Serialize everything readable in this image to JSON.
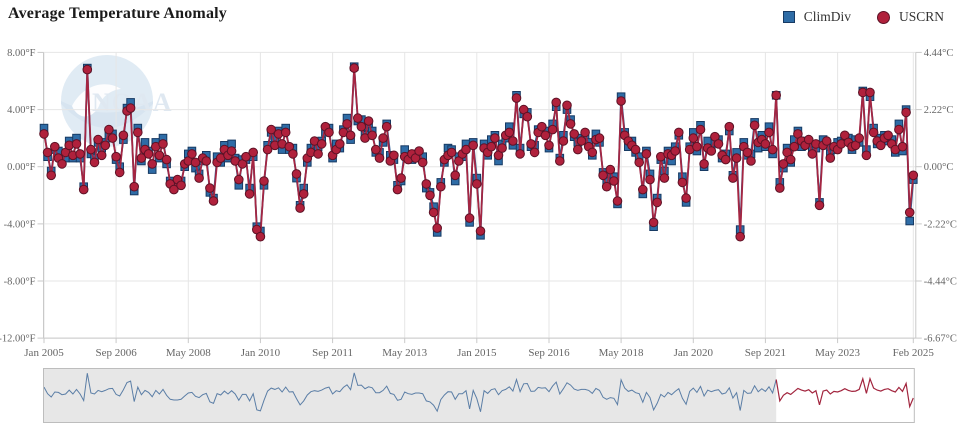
{
  "title": "Average Temperature Anomaly",
  "watermark": "NOAA",
  "legend": [
    {
      "label": "ClimDiv",
      "marker": "square",
      "color": "#2e6ca6",
      "border": "#173a63"
    },
    {
      "label": "USCRN",
      "marker": "circle",
      "color": "#b0213c",
      "border": "#5c1226"
    }
  ],
  "chart_data": {
    "type": "line",
    "title": "Average Temperature Anomaly",
    "x_start": "Jan 2005",
    "x_end": "Feb 2025",
    "x_interval": "monthly",
    "x_tick_labels": [
      "Jan 2005",
      "Sep 2006",
      "May 2008",
      "Jan 2010",
      "Sep 2011",
      "May 2013",
      "Jan 2015",
      "Sep 2016",
      "May 2018",
      "Jan 2020",
      "Sep 2021",
      "May 2023",
      "Feb 2025"
    ],
    "x_tick_month_index": [
      0,
      20,
      40,
      60,
      80,
      100,
      120,
      140,
      160,
      180,
      200,
      220,
      241
    ],
    "yaxis_left": {
      "unit": "°F",
      "ticks": [
        "8.00°F",
        "4.00°F",
        "0.00°F",
        "-4.00°F",
        "-8.00°F",
        "-12.00°F"
      ],
      "values": [
        8,
        4,
        0,
        -4,
        -8,
        -12
      ],
      "ylim": [
        -12,
        8
      ]
    },
    "yaxis_right": {
      "unit": "°C",
      "ticks": [
        "4.44°C",
        "2.22°C",
        "0.00°C",
        "-2.22°C",
        "-4.44°C",
        "-6.67°C"
      ],
      "values": [
        4.44,
        2.22,
        0,
        -2.22,
        -4.44,
        -6.67
      ],
      "ylim": [
        -6.67,
        4.44
      ]
    },
    "grid": true,
    "legend_position": "top-right",
    "line_color": {
      "climdiv": "#2a5f97",
      "uscrn": "#a52642"
    },
    "series": [
      {
        "name": "ClimDiv",
        "marker": "square",
        "color": "#2e6ca6",
        "values": [
          2.7,
          0.7,
          -0.3,
          1.2,
          1.1,
          0.4,
          0.6,
          1.8,
          0.6,
          2.0,
          0.6,
          -1.4,
          6.9,
          0.9,
          0.6,
          1.7,
          1.3,
          1.7,
          2.2,
          2.3,
          0.5,
          0.0,
          1.9,
          4.1,
          4.5,
          -1.7,
          2.7,
          0.4,
          1.7,
          1.1,
          -0.2,
          1.7,
          0.6,
          2.0,
          0.2,
          -1.0,
          -1.2,
          -1.2,
          -1.0,
          0.0,
          0.9,
          1.1,
          -0.1,
          -0.5,
          0.4,
          0.8,
          -1.8,
          -2.2,
          0.7,
          0.3,
          1.5,
          0.6,
          1.6,
          0.6,
          -1.3,
          0.5,
          0.5,
          -1.5,
          0.7,
          -4.2,
          -4.5,
          -1.3,
          1.5,
          2.4,
          2.0,
          2.5,
          1.2,
          2.7,
          1.2,
          1.3,
          -0.8,
          -2.7,
          -1.5,
          0.3,
          1.3,
          1.6,
          1.4,
          1.8,
          2.4,
          2.7,
          0.6,
          1.6,
          1.3,
          2.6,
          3.4,
          1.9,
          7.0,
          3.2,
          3.3,
          2.2,
          2.8,
          2.5,
          1.0,
          1.0,
          1.7,
          3.0,
          0.8,
          0.5,
          -1.3,
          -1.0,
          1.2,
          0.7,
          0.5,
          0.9,
          0.9,
          0.7,
          -1.5,
          -1.8,
          -2.8,
          -4.6,
          -1.1,
          0.3,
          1.3,
          1.2,
          -1.0,
          0.7,
          0.7,
          1.6,
          -3.9,
          1.7,
          -0.8,
          -4.8,
          1.6,
          0.8,
          1.9,
          2.2,
          0.4,
          1.6,
          2.0,
          2.8,
          1.5,
          5.0,
          1.3,
          3.7,
          3.8,
          1.4,
          1.5,
          2.6,
          2.4,
          2.5,
          1.3,
          3.0,
          4.2,
          0.6,
          2.2,
          4.0,
          3.3,
          2.1,
          1.7,
          2.0,
          2.0,
          1.7,
          0.8,
          2.3,
          1.7,
          -0.4,
          -1.0,
          -0.5,
          -0.7,
          -2.6,
          4.9,
          2.4,
          1.4,
          1.8,
          1.0,
          0.7,
          -1.9,
          1.1,
          -0.5,
          -4.2,
          -2.2,
          0.5,
          -0.3,
          1.1,
          0.4,
          1.4,
          2.2,
          -0.7,
          -2.5,
          1.4,
          2.4,
          1.1,
          2.9,
          0.0,
          1.8,
          1.3,
          1.7,
          1.9,
          0.6,
          0.9,
          2.5,
          -0.6,
          1.0,
          -4.4,
          1.7,
          0.8,
          0.9,
          3.1,
          1.3,
          2.2,
          1.4,
          2.8,
          0.9,
          5.0,
          -1.1,
          -0.1,
          1.3,
          0.3,
          1.9,
          2.5,
          1.4,
          1.8,
          1.7,
          1.3,
          1.3,
          -2.5,
          1.9,
          1.5,
          0.9,
          1.2,
          1.7,
          1.8,
          1.8,
          2.0,
          1.2,
          1.9,
          1.7,
          5.3,
          1.2,
          4.9,
          2.7,
          1.6,
          2.0,
          2.2,
          1.8,
          1.9,
          1.0,
          3.0,
          1.1,
          4.0,
          -3.8,
          -0.9
        ]
      },
      {
        "name": "USCRN",
        "marker": "circle",
        "color": "#b0213c",
        "values": [
          2.3,
          1.0,
          -0.6,
          1.4,
          0.6,
          0.2,
          1.0,
          1.5,
          0.8,
          1.6,
          0.9,
          -1.6,
          6.8,
          1.2,
          0.3,
          1.9,
          0.8,
          1.5,
          2.6,
          2.0,
          0.7,
          -0.4,
          2.2,
          3.9,
          4.1,
          -1.4,
          2.4,
          0.6,
          1.2,
          0.9,
          0.2,
          1.4,
          0.8,
          1.6,
          0.5,
          -1.2,
          -1.6,
          -0.9,
          -1.3,
          0.2,
          0.4,
          0.9,
          0.3,
          -0.8,
          0.6,
          0.4,
          -1.5,
          -2.4,
          0.3,
          0.6,
          1.2,
          0.8,
          1.1,
          0.4,
          -0.9,
          0.2,
          0.7,
          -1.9,
          1.0,
          -4.4,
          -4.9,
          -1.0,
          1.2,
          2.6,
          1.5,
          2.3,
          1.6,
          2.4,
          1.4,
          0.9,
          -0.5,
          -2.9,
          -1.9,
          0.6,
          1.0,
          1.8,
          0.9,
          1.6,
          2.8,
          2.4,
          0.8,
          1.2,
          1.6,
          2.4,
          3.0,
          2.2,
          6.9,
          3.4,
          2.8,
          2.0,
          3.2,
          2.2,
          1.2,
          0.6,
          2.0,
          2.8,
          0.4,
          0.8,
          -1.6,
          -0.8,
          0.7,
          0.5,
          0.9,
          0.6,
          1.1,
          0.3,
          -1.2,
          -2.0,
          -3.2,
          -4.3,
          -1.4,
          0.5,
          0.8,
          1.0,
          -0.6,
          0.4,
          0.9,
          1.2,
          -3.6,
          1.5,
          -1.2,
          -4.5,
          1.3,
          1.0,
          1.4,
          2.0,
          0.8,
          1.3,
          2.2,
          2.4,
          1.8,
          4.8,
          0.9,
          4.0,
          3.5,
          1.6,
          1.0,
          2.4,
          2.8,
          2.2,
          1.5,
          2.6,
          4.5,
          0.4,
          1.8,
          4.3,
          3.0,
          2.3,
          1.2,
          1.8,
          2.4,
          1.4,
          1.0,
          1.9,
          2.0,
          -0.6,
          -1.4,
          -0.2,
          -1.0,
          -2.4,
          4.6,
          2.2,
          1.8,
          1.5,
          1.2,
          0.3,
          -1.6,
          0.9,
          -0.9,
          -3.9,
          -2.5,
          0.7,
          -0.8,
          0.9,
          0.8,
          1.1,
          2.4,
          -1.1,
          -2.2,
          1.2,
          2.0,
          1.4,
          2.6,
          0.2,
          1.3,
          1.1,
          2.1,
          1.6,
          0.8,
          0.5,
          2.8,
          -0.8,
          0.6,
          -4.9,
          1.4,
          1.0,
          0.4,
          2.9,
          1.7,
          1.9,
          1.6,
          2.4,
          1.2,
          5.0,
          -1.5,
          0.2,
          1.0,
          0.5,
          1.4,
          2.3,
          1.8,
          1.5,
          1.9,
          0.9,
          1.6,
          -2.7,
          1.5,
          1.8,
          0.6,
          1.4,
          1.2,
          1.6,
          2.2,
          1.7,
          1.4,
          1.5,
          2.0,
          5.2,
          0.8,
          5.2,
          2.4,
          1.8,
          1.5,
          2.0,
          2.2,
          1.6,
          1.2,
          2.6,
          1.4,
          3.8,
          -3.2,
          -0.6
        ]
      }
    ],
    "navigator": {
      "mask_end_month_index": 203,
      "mask_color": "#e7e7e7",
      "outline_color": "#bdbdbd",
      "line_color_masked": "#5b7ea6",
      "line_color_clear": "#a2253e"
    }
  }
}
